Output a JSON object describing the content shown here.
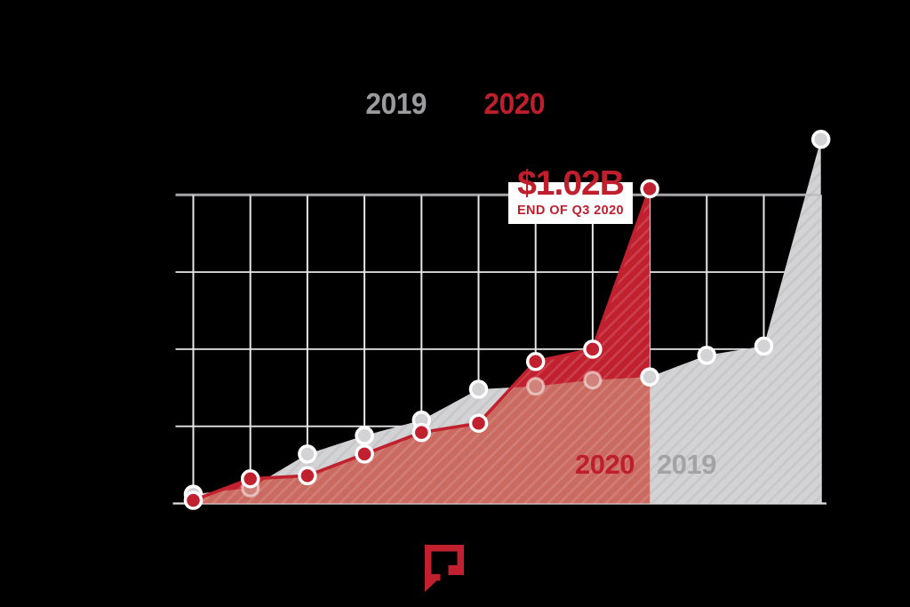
{
  "legend": {
    "y2019": "2019",
    "y2020": "2020"
  },
  "annotation": {
    "value": "$1.02B",
    "caption": "END OF Q3 2020"
  },
  "area_labels": {
    "red_area": "2020",
    "gray_area": "2019"
  },
  "logo": {
    "icon": "speech-bubble-logo"
  },
  "colors": {
    "red": "#bf1e2d",
    "crimson_area": "#c1202e",
    "salmon_overlap": "#ca6a60",
    "gray_area": "#d3d3d5",
    "legend_gray": "#9c9c9f",
    "label_gray": "#a3a3a6",
    "ghost_marker": "#d0837a",
    "ghost_ring": "rgba(255,255,255,0.5)",
    "grid_light": "#e7e7e9",
    "grid_top": "#a6a6a9",
    "axis_bottom": "#e0e0e2",
    "marker_ring": "#ffffff",
    "background": "#000000"
  },
  "chart_data": {
    "type": "area",
    "unit": "USD billions",
    "series": [
      {
        "name": "2019",
        "values": [
          0.03,
          0.05,
          0.16,
          0.22,
          0.27,
          0.37,
          0.38,
          0.4,
          0.41,
          0.48,
          0.51,
          1.18
        ]
      },
      {
        "name": "2020",
        "values": [
          0.01,
          0.08,
          0.09,
          0.16,
          0.23,
          0.26,
          0.46,
          0.5,
          1.02
        ]
      }
    ],
    "x_points": 12,
    "x_tick_labels_visible": false,
    "ylim": [
      0,
      1.25
    ],
    "y_gridlines": [
      0,
      0.25,
      0.5,
      0.75,
      1.0
    ],
    "grid": true,
    "legend_position": "top-center",
    "annotation": {
      "series": "2020",
      "point_index": 8,
      "label": "$1.02B",
      "sublabel": "END OF Q3 2020"
    }
  }
}
